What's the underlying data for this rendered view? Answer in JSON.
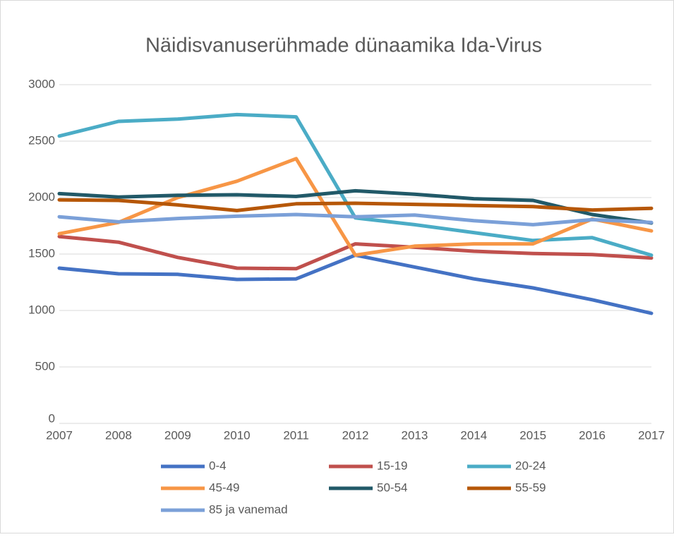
{
  "chart_data": {
    "type": "line",
    "title": "Näidisvanuserühmade dünaamika Ida-Virus",
    "categories": [
      "2007",
      "2008",
      "2009",
      "2010",
      "2011",
      "2012",
      "2013",
      "2014",
      "2015",
      "2016",
      "2017"
    ],
    "series": [
      {
        "name": "0-4",
        "color": "#4472c4",
        "values": [
          1375,
          1325,
          1320,
          1275,
          1280,
          1490,
          1385,
          1280,
          1200,
          1095,
          975
        ]
      },
      {
        "name": "15-19",
        "color": "#c0504d",
        "values": [
          1655,
          1605,
          1470,
          1375,
          1370,
          1590,
          1560,
          1525,
          1505,
          1495,
          1465
        ]
      },
      {
        "name": "20-24",
        "color": "#4bacc6",
        "values": [
          2545,
          2675,
          2695,
          2735,
          2715,
          1820,
          1760,
          1690,
          1620,
          1645,
          1490
        ]
      },
      {
        "name": "45-49",
        "color": "#f79646",
        "values": [
          1680,
          1780,
          2000,
          2145,
          2345,
          1490,
          1570,
          1590,
          1590,
          1810,
          1705
        ]
      },
      {
        "name": "50-54",
        "color": "#215968",
        "values": [
          2035,
          2005,
          2020,
          2025,
          2010,
          2060,
          2030,
          1990,
          1975,
          1850,
          1775
        ]
      },
      {
        "name": "55-59",
        "color": "#b65708",
        "values": [
          1980,
          1975,
          1935,
          1885,
          1945,
          1950,
          1940,
          1930,
          1920,
          1890,
          1905
        ]
      },
      {
        "name": "85 ja vanemad",
        "color": "#7ba0d8",
        "values": [
          1830,
          1785,
          1815,
          1835,
          1850,
          1830,
          1845,
          1795,
          1760,
          1805,
          1780
        ]
      }
    ],
    "ylim": [
      0,
      3000
    ],
    "yticks": [
      0,
      500,
      1000,
      1500,
      2000,
      2500,
      3000
    ],
    "grid": true,
    "legend": "bottom"
  }
}
